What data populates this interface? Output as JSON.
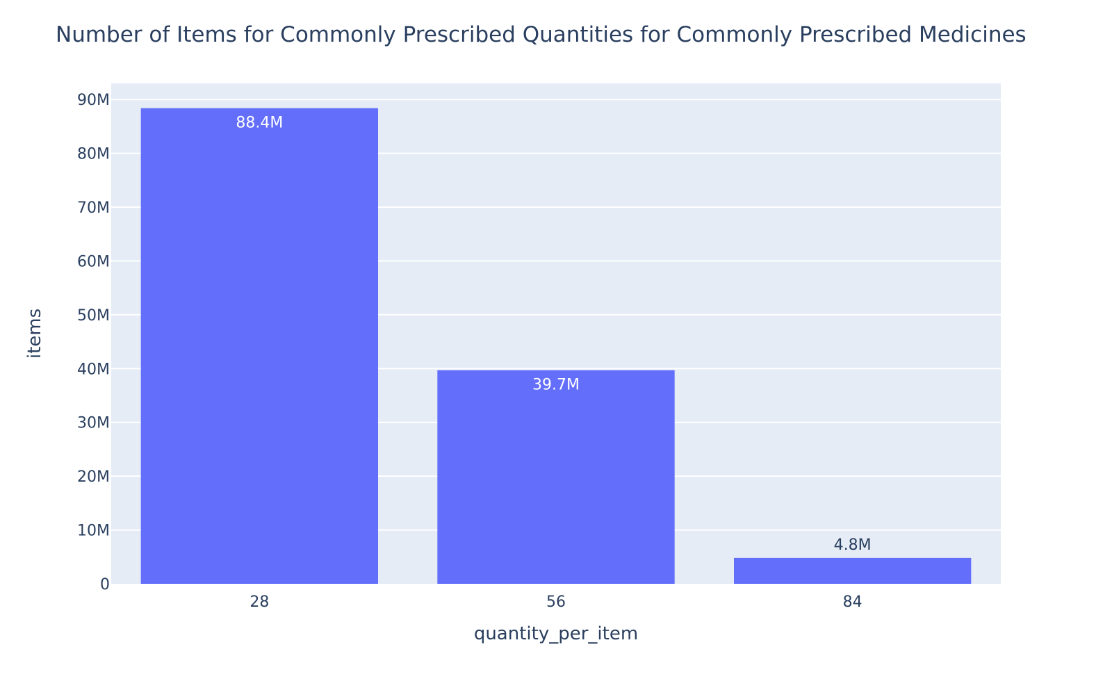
{
  "chart_data": {
    "type": "bar",
    "title": "Number of Items for Commonly Prescribed Quantities for Commonly Prescribed Medicines",
    "xlabel": "quantity_per_item",
    "ylabel": "items",
    "categories": [
      "28",
      "56",
      "84"
    ],
    "values": [
      88400000,
      39700000,
      4800000
    ],
    "value_labels": [
      "88.4M",
      "39.7M",
      "4.8M"
    ],
    "ylim": [
      0,
      93000000
    ],
    "yticks": [
      0,
      10000000,
      20000000,
      30000000,
      40000000,
      50000000,
      60000000,
      70000000,
      80000000,
      90000000
    ],
    "ytick_labels": [
      "0",
      "10M",
      "20M",
      "30M",
      "40M",
      "50M",
      "60M",
      "70M",
      "80M",
      "90M"
    ],
    "grid": true,
    "legend": "none",
    "colors": {
      "bar": "#636efa",
      "plot_bg": "#e5ecf6",
      "grid": "#ffffff",
      "text": "#2a3f5f"
    }
  }
}
